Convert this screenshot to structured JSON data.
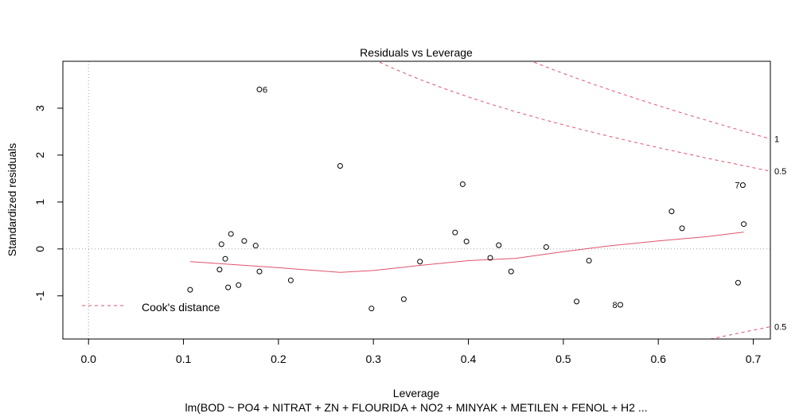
{
  "chart_data": {
    "type": "scatter",
    "title": "Residuals vs Leverage",
    "xlabel": "Leverage",
    "ylabel": "Standardized residuals",
    "subtitle": "lm(BOD ~ PO4 + NITRAT + ZN + FLOURIDA + NO2 + MINYAK + METILEN + FENOL + H2 ...",
    "xlim": [
      -0.027,
      0.718
    ],
    "ylim": [
      -1.92,
      4.0
    ],
    "x_ticks": [
      "0.0",
      "0.1",
      "0.2",
      "0.3",
      "0.4",
      "0.5",
      "0.6",
      "0.7"
    ],
    "x_tick_values": [
      0,
      0.1,
      0.2,
      0.3,
      0.4,
      0.5,
      0.6,
      0.7
    ],
    "y_ticks": [
      "-1",
      "0",
      "1",
      "2",
      "3"
    ],
    "y_tick_values": [
      -1,
      0,
      1,
      2,
      3
    ],
    "points": [
      {
        "x": 0.107,
        "y": -0.87
      },
      {
        "x": 0.138,
        "y": -0.44
      },
      {
        "x": 0.14,
        "y": 0.1
      },
      {
        "x": 0.144,
        "y": -0.21
      },
      {
        "x": 0.147,
        "y": -0.82
      },
      {
        "x": 0.15,
        "y": 0.32
      },
      {
        "x": 0.158,
        "y": -0.77
      },
      {
        "x": 0.164,
        "y": 0.17
      },
      {
        "x": 0.176,
        "y": 0.07
      },
      {
        "x": 0.18,
        "y": -0.48
      },
      {
        "x": 0.18,
        "y": 3.4,
        "label": "6"
      },
      {
        "x": 0.213,
        "y": -0.67
      },
      {
        "x": 0.265,
        "y": 1.77
      },
      {
        "x": 0.298,
        "y": -1.27
      },
      {
        "x": 0.332,
        "y": -1.07
      },
      {
        "x": 0.349,
        "y": -0.27
      },
      {
        "x": 0.386,
        "y": 0.35
      },
      {
        "x": 0.394,
        "y": 1.38
      },
      {
        "x": 0.398,
        "y": 0.16
      },
      {
        "x": 0.423,
        "y": -0.19
      },
      {
        "x": 0.432,
        "y": 0.08
      },
      {
        "x": 0.445,
        "y": -0.48
      },
      {
        "x": 0.482,
        "y": 0.04
      },
      {
        "x": 0.514,
        "y": -1.12
      },
      {
        "x": 0.527,
        "y": -0.25
      },
      {
        "x": 0.56,
        "y": -1.19,
        "label": "8"
      },
      {
        "x": 0.614,
        "y": 0.8
      },
      {
        "x": 0.625,
        "y": 0.44
      },
      {
        "x": 0.684,
        "y": -0.72
      },
      {
        "x": 0.689,
        "y": 1.36,
        "label": "7"
      },
      {
        "x": 0.69,
        "y": 0.53
      }
    ],
    "smooth": {
      "color": "#DF536B",
      "x": [
        0.107,
        0.15,
        0.2,
        0.265,
        0.3,
        0.35,
        0.4,
        0.45,
        0.5,
        0.55,
        0.6,
        0.65,
        0.69
      ],
      "y": [
        -0.27,
        -0.33,
        -0.4,
        -0.5,
        -0.46,
        -0.35,
        -0.25,
        -0.2,
        -0.06,
        0.07,
        0.17,
        0.26,
        0.36
      ]
    },
    "cooks_distance": {
      "legend": "Cook's distance",
      "color": "#DF536B",
      "p": 14,
      "levels": [
        {
          "label": "1",
          "value": 1
        },
        {
          "label": "0.5",
          "value": 0.5
        },
        {
          "label": "0.5",
          "value": 0.5,
          "negative": true
        }
      ]
    },
    "grid": false,
    "legend_position": "bottom-left",
    "reference_lines_color": "#a0a0a0"
  }
}
